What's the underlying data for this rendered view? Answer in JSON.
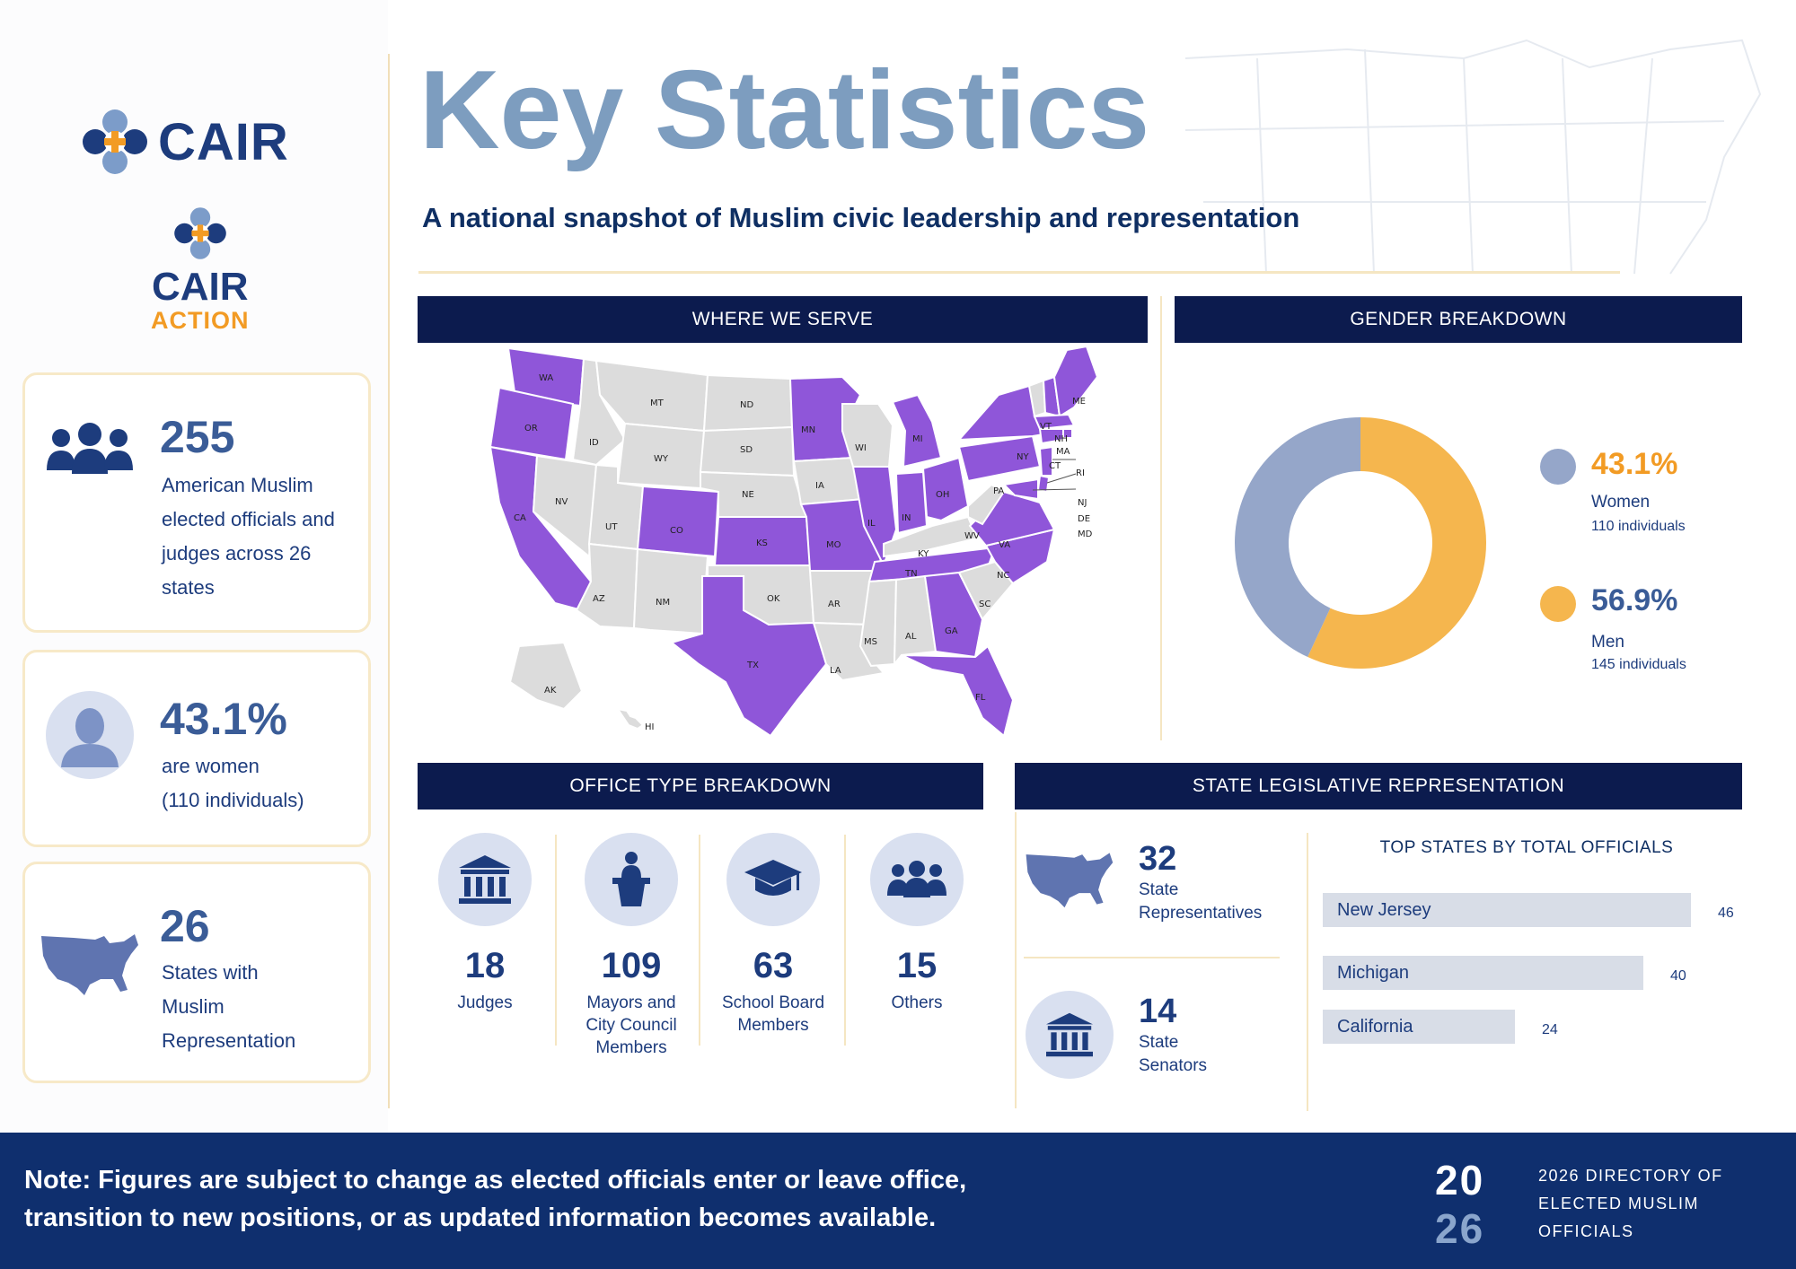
{
  "logos": {
    "main": "CAIR",
    "action_word": "CAIR",
    "action_sub": "ACTION"
  },
  "header": {
    "title": "Key Statistics",
    "subtitle": "A national snapshot of Muslim civic leadership and representation"
  },
  "sidebar": {
    "cards": [
      {
        "value": "255",
        "lines": [
          "American Muslim",
          "elected officials and",
          "judges across 26",
          "states"
        ],
        "icon": "people-group-icon"
      },
      {
        "value": "43.1%",
        "lines": [
          "are women",
          "(110 individuals)"
        ],
        "icon": "woman-avatar-icon"
      },
      {
        "value": "26",
        "lines": [
          "States with",
          "Muslim",
          "Representation"
        ],
        "icon": "us-map-icon"
      }
    ]
  },
  "sections": {
    "map": "WHERE WE SERVE",
    "gender": "GENDER BREAKDOWN",
    "office": "OFFICE TYPE BREAKDOWN",
    "legislative": "STATE LEGISLATIVE REPRESENTATION"
  },
  "map": {
    "highlight_color": "#8f56d9",
    "base_color": "#dcdcdc",
    "states": [
      "WA",
      "OR",
      "CA",
      "NV",
      "ID",
      "MT",
      "WY",
      "UT",
      "AZ",
      "NM",
      "CO",
      "ND",
      "SD",
      "NE",
      "KS",
      "OK",
      "TX",
      "MN",
      "IA",
      "MO",
      "AR",
      "LA",
      "WI",
      "IL",
      "MI",
      "IN",
      "OH",
      "KY",
      "TN",
      "MS",
      "AL",
      "GA",
      "FL",
      "SC",
      "NC",
      "VA",
      "WV",
      "PA",
      "NY",
      "VT",
      "NH",
      "ME",
      "MA",
      "RI",
      "CT",
      "NJ",
      "DE",
      "MD",
      "AK",
      "HI"
    ]
  },
  "gender": {
    "women": {
      "pct": "43.1%",
      "label": "Women",
      "sub": "110 individuals",
      "color": "#f5b64e"
    },
    "men": {
      "pct": "56.9%",
      "label": "Men",
      "sub": "145 individuals",
      "color": "#95a6c9"
    }
  },
  "office_types": [
    {
      "value": "18",
      "lines": [
        "Judges"
      ],
      "icon": "courthouse-icon"
    },
    {
      "value": "109",
      "lines": [
        "Mayors and",
        "City Council",
        "Members"
      ],
      "icon": "podium-icon"
    },
    {
      "value": "63",
      "lines": [
        "School Board",
        "Members"
      ],
      "icon": "graduation-cap-icon"
    },
    {
      "value": "15",
      "lines": [
        "Others"
      ],
      "icon": "group-icon"
    }
  ],
  "legislative": {
    "reps": {
      "value": "32",
      "lines": [
        "State",
        "Representatives"
      ]
    },
    "senators": {
      "value": "14",
      "lines": [
        "State",
        "Senators"
      ]
    }
  },
  "chart_data": {
    "type": "bar",
    "title": "TOP STATES BY TOTAL OFFICIALS",
    "categories": [
      "New Jersey",
      "Michigan",
      "California"
    ],
    "values": [
      46,
      40,
      24
    ],
    "value_labels": [
      "46",
      "40",
      "24"
    ],
    "orientation": "horizontal"
  },
  "footer": {
    "note_lines": [
      "Note: Figures are subject to change as elected officials enter or leave office,",
      "transition to new positions, or as updated information becomes available."
    ],
    "year_top": "20",
    "year_bottom": "26",
    "directory_lines": [
      "2026 DIRECTORY OF",
      "ELECTED MUSLIM",
      "OFFICIALS"
    ]
  }
}
